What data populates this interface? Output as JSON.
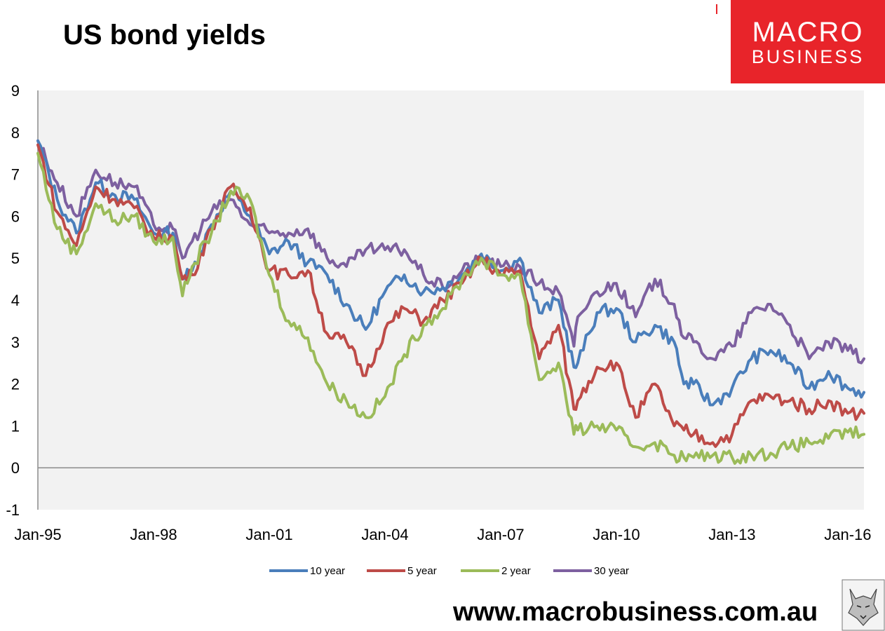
{
  "header": {
    "title": "US bond yields"
  },
  "logo": {
    "line1": "MACRO",
    "line2": "BUSINESS"
  },
  "footer": {
    "website": "www.macrobusiness.com.au"
  },
  "chart_data": {
    "type": "line",
    "title": "US bond yields",
    "xlabel": "",
    "ylabel": "",
    "ylim": [
      -1,
      9
    ],
    "xlim": [
      1995.0,
      2016.42
    ],
    "x_tick_labels": [
      "Jan-95",
      "Jan-98",
      "Jan-01",
      "Jan-04",
      "Jan-07",
      "Jan-10",
      "Jan-13",
      "Jan-16"
    ],
    "y_tick_labels": [
      "-1",
      "0",
      "1",
      "2",
      "3",
      "4",
      "5",
      "6",
      "7",
      "8",
      "9"
    ],
    "grid": false,
    "legend_position": "bottom",
    "series": [
      {
        "name": "10 year",
        "color": "#4a7ebb",
        "x": [
          1995.0,
          1995.5,
          1996.0,
          1996.5,
          1997.0,
          1997.5,
          1998.0,
          1998.5,
          1998.75,
          1999.0,
          1999.5,
          2000.0,
          2000.5,
          2001.0,
          2001.5,
          2002.0,
          2002.5,
          2003.0,
          2003.5,
          2004.0,
          2004.5,
          2005.0,
          2005.5,
          2006.0,
          2006.5,
          2007.0,
          2007.5,
          2008.0,
          2008.5,
          2008.9,
          2009.0,
          2009.5,
          2010.0,
          2010.5,
          2011.0,
          2011.5,
          2011.75,
          2012.0,
          2012.5,
          2013.0,
          2013.5,
          2014.0,
          2014.5,
          2015.0,
          2015.5,
          2016.0,
          2016.42
        ],
        "values": [
          7.8,
          6.4,
          5.6,
          6.8,
          6.5,
          6.4,
          5.6,
          5.6,
          4.5,
          4.7,
          5.8,
          6.6,
          6.0,
          5.1,
          5.4,
          4.9,
          4.6,
          3.9,
          3.3,
          4.2,
          4.6,
          4.2,
          4.3,
          4.6,
          5.1,
          4.7,
          5.0,
          3.7,
          4.0,
          2.4,
          2.5,
          3.7,
          3.8,
          3.0,
          3.4,
          3.0,
          2.0,
          2.0,
          1.5,
          1.9,
          2.6,
          2.8,
          2.5,
          1.9,
          2.3,
          1.9,
          1.8
        ]
      },
      {
        "name": "5 year",
        "color": "#be4b48",
        "x": [
          1995.0,
          1995.5,
          1996.0,
          1996.5,
          1997.0,
          1997.5,
          1998.0,
          1998.5,
          1998.75,
          1999.0,
          1999.5,
          2000.0,
          2000.5,
          2001.0,
          2001.5,
          2002.0,
          2002.5,
          2003.0,
          2003.5,
          2004.0,
          2004.5,
          2005.0,
          2005.5,
          2006.0,
          2006.5,
          2007.0,
          2007.5,
          2008.0,
          2008.5,
          2008.9,
          2009.0,
          2009.5,
          2010.0,
          2010.5,
          2011.0,
          2011.5,
          2011.75,
          2012.0,
          2012.5,
          2013.0,
          2013.5,
          2014.0,
          2014.5,
          2015.0,
          2015.5,
          2016.0,
          2016.42
        ],
        "values": [
          7.7,
          6.1,
          5.3,
          6.7,
          6.4,
          6.2,
          5.5,
          5.5,
          4.5,
          4.6,
          5.7,
          6.7,
          6.2,
          4.7,
          4.6,
          4.7,
          3.2,
          3.0,
          2.2,
          3.3,
          3.8,
          3.5,
          4.0,
          4.4,
          5.0,
          4.6,
          4.7,
          2.6,
          3.4,
          1.4,
          1.6,
          2.4,
          2.5,
          1.2,
          2.0,
          1.0,
          0.9,
          0.8,
          0.6,
          0.8,
          1.6,
          1.7,
          1.6,
          1.4,
          1.6,
          1.3,
          1.3
        ]
      },
      {
        "name": "2 year",
        "color": "#9bbb59",
        "x": [
          1995.0,
          1995.5,
          1996.0,
          1996.5,
          1997.0,
          1997.5,
          1998.0,
          1998.5,
          1998.75,
          1999.0,
          1999.5,
          2000.0,
          2000.5,
          2001.0,
          2001.5,
          2002.0,
          2002.5,
          2003.0,
          2003.5,
          2004.0,
          2004.5,
          2005.0,
          2005.5,
          2006.0,
          2006.5,
          2007.0,
          2007.5,
          2008.0,
          2008.5,
          2008.9,
          2009.0,
          2009.5,
          2010.0,
          2010.5,
          2011.0,
          2011.5,
          2011.75,
          2012.0,
          2012.5,
          2013.0,
          2013.5,
          2014.0,
          2014.5,
          2015.0,
          2015.5,
          2016.0,
          2016.42
        ],
        "values": [
          7.5,
          5.7,
          5.1,
          6.3,
          5.9,
          6.0,
          5.4,
          5.5,
          4.1,
          4.8,
          5.6,
          6.6,
          6.4,
          4.6,
          3.5,
          3.1,
          2.0,
          1.6,
          1.2,
          1.7,
          2.7,
          3.4,
          3.8,
          4.5,
          5.0,
          4.6,
          4.6,
          2.1,
          2.5,
          0.8,
          0.9,
          1.0,
          0.9,
          0.5,
          0.6,
          0.3,
          0.25,
          0.25,
          0.3,
          0.25,
          0.3,
          0.35,
          0.5,
          0.6,
          0.7,
          0.85,
          0.8
        ]
      },
      {
        "name": "30 year",
        "color": "#7d60a0",
        "x": [
          1995.0,
          1995.5,
          1996.0,
          1996.5,
          1997.0,
          1997.5,
          1998.0,
          1998.5,
          1998.75,
          1999.0,
          1999.5,
          2000.0,
          2000.5,
          2001.0,
          2001.5,
          2002.0,
          2002.5,
          2003.0,
          2003.5,
          2004.0,
          2004.5,
          2005.0,
          2005.5,
          2006.0,
          2006.5,
          2007.0,
          2007.5,
          2008.0,
          2008.5,
          2008.9,
          2009.0,
          2009.5,
          2010.0,
          2010.5,
          2011.0,
          2011.5,
          2011.75,
          2012.0,
          2012.5,
          2013.0,
          2013.5,
          2014.0,
          2014.5,
          2015.0,
          2015.5,
          2016.0,
          2016.42
        ],
        "values": [
          7.8,
          6.8,
          6.0,
          7.1,
          6.8,
          6.7,
          5.8,
          5.7,
          5.0,
          5.4,
          6.1,
          6.4,
          5.8,
          5.6,
          5.6,
          5.7,
          5.0,
          4.8,
          5.2,
          5.2,
          5.2,
          4.6,
          4.3,
          4.7,
          5.0,
          4.8,
          4.8,
          4.4,
          4.2,
          2.9,
          3.6,
          4.2,
          4.4,
          3.6,
          4.5,
          3.9,
          3.1,
          3.0,
          2.6,
          2.9,
          3.7,
          3.9,
          3.4,
          2.6,
          3.0,
          2.8,
          2.6
        ]
      }
    ]
  }
}
